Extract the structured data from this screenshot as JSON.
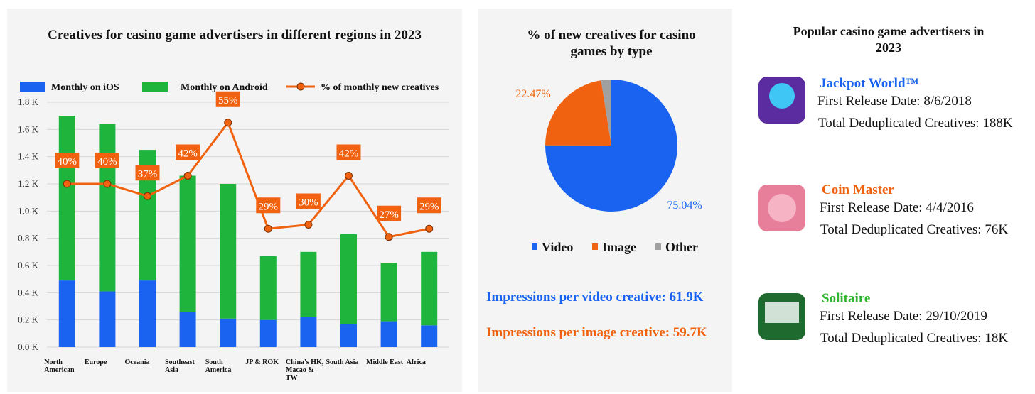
{
  "chart_data": [
    {
      "type": "bar",
      "stacked": true,
      "title": "Creatives for casino game advertisers in different regions in 2023",
      "categories": [
        "North American",
        "Europe",
        "Oceania",
        "Southeast Asia",
        "South America",
        "JP & ROK",
        "China's HK, Macao & TW",
        "South Asia",
        "Middle East",
        "Africa"
      ],
      "series": [
        {
          "name": "Monthly on iOS",
          "color": "#1a63f0",
          "values": [
            0.49,
            0.41,
            0.49,
            0.26,
            0.21,
            0.2,
            0.22,
            0.17,
            0.19,
            0.16
          ]
        },
        {
          "name": "Monthly on Android",
          "color": "#1fb53c",
          "values": [
            1.21,
            1.23,
            0.96,
            1.0,
            0.99,
            0.47,
            0.48,
            0.66,
            0.43,
            0.54
          ]
        },
        {
          "name": "% of monthly new creatives",
          "color": "#f0620f",
          "type": "line",
          "axis": "y2",
          "values": [
            40,
            40,
            37,
            42,
            55,
            29,
            30,
            42,
            27,
            29
          ],
          "value_labels": [
            "40%",
            "40%",
            "37%",
            "42%",
            "55%",
            "29%",
            "30%",
            "42%",
            "27%",
            "29%"
          ]
        }
      ],
      "ylim": [
        0,
        1.8
      ],
      "yticks": [
        {
          "value": 0,
          "label": "0.0 K"
        },
        {
          "value": 0.2,
          "label": "0.2 K"
        },
        {
          "value": 0.4,
          "label": "0.4 K"
        },
        {
          "value": 0.6,
          "label": "0.6 K"
        },
        {
          "value": 0.8,
          "label": "0.8 K"
        },
        {
          "value": 1.0,
          "label": "1.0 K"
        },
        {
          "value": 1.2,
          "label": "1.2 K"
        },
        {
          "value": 1.4,
          "label": "1.4 K"
        },
        {
          "value": 1.6,
          "label": "1.6 K"
        },
        {
          "value": 1.8,
          "label": "1.8 K"
        }
      ],
      "y2lim": [
        0,
        60
      ],
      "grid": true
    },
    {
      "type": "pie",
      "title": "% of new creatives for casino games by type",
      "categories": [
        "Video",
        "Image",
        "Other"
      ],
      "values": [
        75.04,
        22.47,
        2.49
      ],
      "value_labels": [
        "75.04%",
        "22.47%",
        null
      ],
      "colors": [
        "#1a63f0",
        "#f0620f",
        "#a0a0a0"
      ]
    }
  ],
  "stats": [
    "Impressions per video creative: 61.9K",
    "Impressions per image creative: 59.7K"
  ],
  "advertisers": {
    "title": "Popular casino game advertisers in 2023",
    "items": [
      {
        "name": "Jackpot World™",
        "release": "First Release Date: 8/6/2018",
        "creatives": "Total Deduplicated Creatives: 188K"
      },
      {
        "name": "Coin Master",
        "release": "First Release Date: 4/4/2016",
        "creatives": "Total Deduplicated Creatives: 76K"
      },
      {
        "name": "Solitaire",
        "release": "First Release Date: 29/10/2019",
        "creatives": "Total Deduplicated Creatives: 18K"
      }
    ]
  }
}
